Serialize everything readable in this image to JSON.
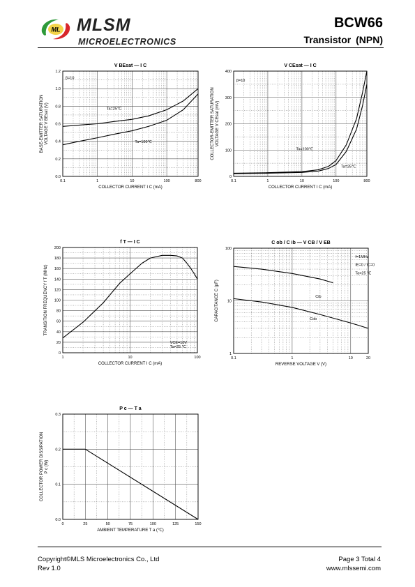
{
  "header": {
    "brand_name": "MLSM",
    "brand_sub": "MICROELECTRONICS",
    "logo_text": "ML",
    "part_number": "BCW66",
    "part_type": "Transistor  (NPN)"
  },
  "footer": {
    "copyright": "Copyright©MLS Microelectronics Co., Ltd",
    "rev": "Rev 1.0",
    "page": "Page 3 Total 4",
    "url": "www.mlssemi.com"
  },
  "colors": {
    "logo_green": "#2e9a3a",
    "logo_red": "#d8262a",
    "text": "#000000"
  },
  "chart_data": [
    {
      "id": "vbesat",
      "type": "line",
      "title": "V BEsat — I C",
      "xlabel": "COLLECTOR CURRENT   I C   (mA)",
      "ylabel": "BASE-EMITTER SATURATION VOLTAGE   V BEsat   (V)",
      "xscale": "log",
      "xlim": [
        0.1,
        800
      ],
      "ylim": [
        0,
        1.2
      ],
      "xticks": [
        0.1,
        1,
        10,
        100,
        800
      ],
      "xticklabels": [
        "0.1",
        "1",
        "10",
        "100",
        "800"
      ],
      "yticks": [
        0,
        0.2,
        0.4,
        0.6,
        0.8,
        1.0,
        1.2
      ],
      "yticklabels": [
        "0.0",
        "0.2",
        "0.4",
        "0.6",
        "0.8",
        "1.0",
        "1.2"
      ],
      "grid": true,
      "annotations": [
        "β=10",
        "Ta=25℃",
        "Ta=100℃"
      ],
      "series": [
        {
          "label": "Ta=25℃",
          "x": [
            0.1,
            0.3,
            1,
            3,
            10,
            30,
            100,
            300,
            800
          ],
          "y": [
            0.57,
            0.585,
            0.6,
            0.625,
            0.65,
            0.69,
            0.76,
            0.86,
            1.0
          ]
        },
        {
          "label": "Ta=100℃",
          "x": [
            0.1,
            0.3,
            1,
            3,
            10,
            30,
            100,
            300,
            800
          ],
          "y": [
            0.36,
            0.4,
            0.44,
            0.48,
            0.52,
            0.57,
            0.64,
            0.76,
            0.94
          ]
        }
      ]
    },
    {
      "id": "vcesat",
      "type": "line",
      "title": "V CEsat — I C",
      "xlabel": "COLLECTOR CURRENT   I C   (mA)",
      "ylabel": "COLLECTOR-EMITTER SATURATION VOLTAGE   V CEsat   (mV)",
      "xscale": "log",
      "xlim": [
        0.1,
        800
      ],
      "ylim": [
        0,
        400
      ],
      "xticks": [
        0.1,
        1,
        10,
        100,
        800
      ],
      "xticklabels": [
        "0.1",
        "1",
        "10",
        "100",
        "800"
      ],
      "yticks": [
        0,
        100,
        200,
        300,
        400
      ],
      "yticklabels": [
        "0",
        "100",
        "200",
        "300",
        "400"
      ],
      "grid": true,
      "annotations": [
        "β=10",
        "Ta=100℃",
        "Ta=25℃"
      ],
      "series": [
        {
          "label": "Ta=100℃",
          "x": [
            0.1,
            1,
            10,
            30,
            60,
            100,
            200,
            400,
            600,
            800
          ],
          "y": [
            12,
            14,
            18,
            25,
            38,
            60,
            120,
            220,
            320,
            400
          ]
        },
        {
          "label": "Ta=25℃",
          "x": [
            0.1,
            1,
            10,
            30,
            60,
            100,
            200,
            400,
            600,
            800
          ],
          "y": [
            10,
            12,
            15,
            20,
            30,
            45,
            95,
            180,
            270,
            350
          ]
        }
      ]
    },
    {
      "id": "ft",
      "type": "line",
      "title": "f T — I C",
      "xlabel": "COLLECTOR CURRENT   I C   (mA)",
      "ylabel": "TRANSITION FREQUENCY   f T   (MHz)",
      "xscale": "log",
      "xlim": [
        1,
        100
      ],
      "ylim": [
        0,
        200
      ],
      "xticks": [
        1,
        10,
        100
      ],
      "xticklabels": [
        "1",
        "10",
        "100"
      ],
      "yticks": [
        0,
        20,
        40,
        60,
        80,
        100,
        120,
        140,
        160,
        180,
        200
      ],
      "yticklabels": [
        "0",
        "20",
        "40",
        "60",
        "80",
        "100",
        "120",
        "140",
        "160",
        "180",
        "200"
      ],
      "grid": true,
      "annotations": [
        "VCE=10V",
        "Ta=25 ℃"
      ],
      "series": [
        {
          "label": "",
          "x": [
            1,
            2,
            4,
            7,
            10,
            15,
            20,
            30,
            40,
            50,
            60,
            70,
            80,
            90,
            100
          ],
          "y": [
            28,
            58,
            95,
            132,
            150,
            170,
            180,
            185,
            185,
            184,
            180,
            170,
            160,
            150,
            140
          ]
        }
      ]
    },
    {
      "id": "cap",
      "type": "line",
      "title": "C ob / C ib — V CB / V EB",
      "xlabel": "REVERSE  VOLTAGE   V   (V)",
      "ylabel": "CAPACITANCE   C   (pF)",
      "xscale": "log",
      "yscale": "log",
      "xlim": [
        0.1,
        20
      ],
      "ylim": [
        1,
        100
      ],
      "xticks": [
        0.1,
        1,
        10,
        20
      ],
      "xticklabels": [
        "0.1",
        "1",
        "10",
        "20"
      ],
      "yticks": [
        1,
        10,
        100
      ],
      "yticklabels": [
        "1",
        "10",
        "100"
      ],
      "grid": true,
      "annotations": [
        "f=1MHz",
        "IE=0 / IC=0",
        "Ta=25 ℃",
        "Cib",
        "Cob"
      ],
      "series": [
        {
          "label": "Cib",
          "x": [
            0.1,
            0.3,
            1,
            3,
            5
          ],
          "y": [
            45,
            40,
            33,
            26,
            22
          ]
        },
        {
          "label": "Cob",
          "x": [
            0.1,
            0.3,
            1,
            3,
            10,
            20
          ],
          "y": [
            11,
            9.5,
            7.5,
            5.5,
            3.8,
            3.0
          ]
        }
      ]
    },
    {
      "id": "pc",
      "type": "line",
      "title": "P c — T a",
      "xlabel": "AMBIENT TEMPERATURE   T a   (℃)",
      "ylabel": "COLLECTOR POWER DISSIPATION   P c   (W)",
      "xscale": "linear",
      "xlim": [
        0,
        150
      ],
      "ylim": [
        0,
        0.3
      ],
      "xticks": [
        0,
        25,
        50,
        75,
        100,
        125,
        150
      ],
      "xticklabels": [
        "0",
        "25",
        "50",
        "75",
        "100",
        "125",
        "150"
      ],
      "yticks": [
        0,
        0.1,
        0.2,
        0.3
      ],
      "yticklabels": [
        "0.0",
        "0.1",
        "0.2",
        "0.3"
      ],
      "grid": true,
      "annotations": [],
      "series": [
        {
          "label": "",
          "x": [
            0,
            25,
            150
          ],
          "y": [
            0.2,
            0.2,
            0
          ]
        }
      ]
    }
  ]
}
